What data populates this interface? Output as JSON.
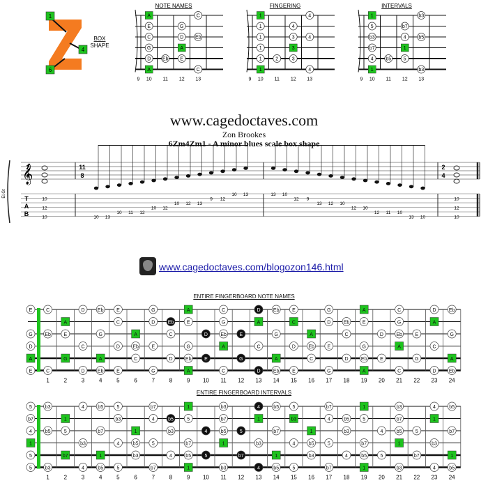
{
  "box_shape": {
    "label_line1": "BOX",
    "label_line2": "SHAPE",
    "markers": [
      "1",
      "4",
      "6"
    ],
    "colors": {
      "z": "#f47b20",
      "green": "#1ec31e",
      "orange": "#f47b20"
    }
  },
  "small_diagrams": {
    "fret_labels": [
      "9",
      "10",
      "11",
      "12",
      "13"
    ],
    "note_names": {
      "title": "NOTE NAMES",
      "rows": [
        [
          "A",
          "",
          "",
          "C"
        ],
        [
          "E",
          "",
          "G",
          ""
        ],
        [
          "C",
          "",
          "D",
          "Eb"
        ],
        [
          "G",
          "",
          "A",
          ""
        ],
        [
          "D",
          "Eb",
          "E",
          ""
        ],
        [
          "A",
          "",
          "",
          "C"
        ]
      ]
    },
    "fingering": {
      "title": "FINGERING",
      "rows": [
        [
          "1",
          "",
          "",
          "4"
        ],
        [
          "1",
          "",
          "4",
          ""
        ],
        [
          "1",
          "",
          "3",
          "4"
        ],
        [
          "1",
          "",
          "3",
          ""
        ],
        [
          "1",
          "2",
          "3",
          ""
        ],
        [
          "1",
          "",
          "",
          "4"
        ]
      ]
    },
    "intervals": {
      "title": "INTERVALS",
      "rows": [
        [
          "1",
          "",
          "",
          "b3"
        ],
        [
          "5",
          "",
          "b7",
          ""
        ],
        [
          "b3",
          "",
          "4",
          "b5"
        ],
        [
          "b7",
          "",
          "1",
          ""
        ],
        [
          "4",
          "b5",
          "5",
          ""
        ],
        [
          "1",
          "",
          "",
          "b3"
        ]
      ]
    }
  },
  "header": {
    "site": "www.cagedoctaves.com",
    "author": "Zon Brookes",
    "scale_title": "6Zm4Zm1 - A minor blues scale box shape"
  },
  "notation": {
    "time_sig_start": "2/4",
    "time_sig_middle": "11/8",
    "time_sig_end": "2/4",
    "tab_letters": [
      "T",
      "A",
      "B"
    ],
    "side_label": "El.Gt",
    "chord_start": [
      "10",
      "12",
      "10"
    ],
    "chord_end": [
      "10",
      "12",
      "10"
    ],
    "ascending": [
      {
        "s": 6,
        "f": "10"
      },
      {
        "s": 6,
        "f": "13"
      },
      {
        "s": 5,
        "f": "10"
      },
      {
        "s": 5,
        "f": "11"
      },
      {
        "s": 5,
        "f": "12"
      },
      {
        "s": 4,
        "f": "10"
      },
      {
        "s": 4,
        "f": "12"
      },
      {
        "s": 3,
        "f": "10"
      },
      {
        "s": 3,
        "f": "12"
      },
      {
        "s": 3,
        "f": "13"
      },
      {
        "s": 2,
        "f": "9"
      },
      {
        "s": 2,
        "f": "12"
      },
      {
        "s": 1,
        "f": "10"
      },
      {
        "s": 1,
        "f": "13"
      }
    ],
    "descending": [
      {
        "s": 1,
        "f": "13"
      },
      {
        "s": 1,
        "f": "10"
      },
      {
        "s": 2,
        "f": "12"
      },
      {
        "s": 2,
        "f": "9"
      },
      {
        "s": 3,
        "f": "13"
      },
      {
        "s": 3,
        "f": "12"
      },
      {
        "s": 3,
        "f": "10"
      },
      {
        "s": 4,
        "f": "12"
      },
      {
        "s": 4,
        "f": "10"
      },
      {
        "s": 5,
        "f": "12"
      },
      {
        "s": 5,
        "f": "11"
      },
      {
        "s": 5,
        "f": "10"
      },
      {
        "s": 6,
        "f": "13"
      },
      {
        "s": 6,
        "f": "10"
      }
    ]
  },
  "blog_link": "www.cagedoctaves.com/blogozon146.html",
  "fret_numbers": [
    "1",
    "2",
    "3",
    "4",
    "5",
    "6",
    "7",
    "8",
    "9",
    "10",
    "11",
    "12",
    "13",
    "14",
    "15",
    "16",
    "17",
    "18",
    "19",
    "20",
    "21",
    "22",
    "23",
    "24"
  ],
  "fb_notes": {
    "title": "ENTIRE FINGERBOARD NOTE NAMES",
    "open": [
      "E",
      "",
      "G",
      "D",
      "A",
      "E"
    ],
    "strings": [
      [
        "",
        "",
        "",
        "Eb",
        "E",
        "",
        "",
        "",
        "",
        "",
        "",
        "",
        "",
        "",
        "",
        "",
        "",
        "",
        "",
        "",
        "",
        "",
        "",
        ""
      ],
      [
        "C",
        "",
        "D",
        "Eb",
        "E",
        "",
        "G",
        "",
        "A",
        "",
        "C",
        "",
        "D",
        "Eb",
        "E",
        "",
        "G",
        "",
        "A",
        "",
        "C",
        "",
        "D",
        "Eb"
      ],
      [
        "",
        "A",
        "",
        "",
        "C",
        "",
        "D",
        "Eb",
        "E",
        "",
        "G",
        "",
        "A",
        "",
        "C",
        "",
        "D",
        "Eb",
        "E",
        "",
        "G",
        "",
        "A",
        ""
      ],
      [
        "Eb",
        "E",
        "",
        "G",
        "",
        "A",
        "",
        "C",
        "",
        "D",
        "Eb",
        "E",
        "",
        "G",
        "",
        "A",
        "",
        "C",
        "",
        "D",
        "Eb",
        "E",
        "",
        "G"
      ],
      [
        "",
        "",
        "C",
        "",
        "D",
        "Eb",
        "E",
        "",
        "G",
        "",
        "A",
        "",
        "C",
        "",
        "D",
        "Eb",
        "E",
        "",
        "G",
        "",
        "A",
        "",
        "C",
        ""
      ],
      [
        "",
        "G",
        "",
        "A",
        "",
        "C",
        "",
        "D",
        "Eb",
        "E",
        "",
        "G",
        "",
        "A",
        "",
        "C",
        "",
        "D",
        "Eb",
        "E",
        "",
        "G",
        "",
        "A"
      ]
    ],
    "rows": [
      [
        "C",
        "",
        "D",
        "Eb",
        "E",
        "",
        "G",
        "",
        "A",
        "",
        "C",
        "",
        "D",
        "Eb",
        "E",
        "",
        "G",
        "",
        "A",
        "",
        "C",
        "",
        "D",
        "Eb"
      ],
      [
        "",
        "A",
        "",
        "",
        "C",
        "",
        "D",
        "Eb",
        "E",
        "",
        "G",
        "",
        "A",
        "",
        "C",
        "",
        "D",
        "Eb",
        "E",
        "",
        "G",
        "",
        "A",
        ""
      ],
      [
        "Eb",
        "E",
        "",
        "G",
        "",
        "A",
        "",
        "C",
        "",
        "D",
        "Eb",
        "E",
        "",
        "G",
        "",
        "A",
        "",
        "C",
        "",
        "D",
        "Eb",
        "E",
        "",
        "G"
      ],
      [
        "",
        "",
        "C",
        "",
        "D",
        "Eb",
        "E",
        "",
        "G",
        "",
        "A",
        "",
        "C",
        "",
        "D",
        "Eb",
        "E",
        "",
        "G",
        "",
        "A",
        "",
        "C",
        ""
      ],
      [
        "",
        "G",
        "",
        "A",
        "",
        "C",
        "",
        "D",
        "Eb",
        "E",
        "",
        "G",
        "",
        "A",
        "",
        "C",
        "",
        "D",
        "Eb",
        "E",
        "",
        "G",
        "",
        "A"
      ],
      [
        "C",
        "",
        "D",
        "Eb",
        "E",
        "",
        "G",
        "",
        "A",
        "",
        "C",
        "",
        "D",
        "Eb",
        "E",
        "",
        "G",
        "",
        "A",
        "",
        "C",
        "",
        "D",
        "Eb"
      ]
    ],
    "styles": [
      [
        "",
        "",
        "",
        "",
        "",
        "",
        "",
        "",
        "",
        "o",
        "",
        "",
        "b",
        "",
        "",
        "",
        "",
        "",
        "",
        "",
        "",
        "g",
        "",
        ""
      ],
      [
        "",
        "g",
        "",
        "",
        "",
        "",
        "",
        "b",
        "",
        "",
        "",
        "b",
        "",
        "",
        "g",
        "",
        "",
        "",
        "",
        "",
        "",
        "",
        "",
        ""
      ],
      [
        "",
        "",
        "",
        "",
        "",
        "g",
        "",
        "",
        "",
        "b",
        "",
        "b",
        "b",
        "",
        "",
        "",
        "",
        "",
        "g",
        "",
        "",
        "",
        "",
        ""
      ],
      [
        "",
        "",
        "",
        "",
        "",
        "",
        "",
        "",
        "",
        "b",
        "",
        "o",
        "",
        "",
        "",
        "",
        "",
        "",
        "",
        "",
        "",
        "",
        "",
        "g"
      ],
      [
        "",
        "g",
        "",
        "",
        "",
        "",
        "",
        "",
        "",
        "b",
        "b",
        "b",
        "",
        "",
        "",
        "",
        "g",
        "",
        "",
        "",
        "",
        "",
        "",
        ""
      ],
      [
        "",
        "",
        "",
        "",
        "",
        "",
        "",
        "",
        "",
        "o",
        "",
        "",
        "b",
        "",
        "",
        "",
        "",
        "",
        "",
        "",
        "",
        "g",
        "",
        ""
      ]
    ]
  },
  "fb_intervals": {
    "title": "ENTIRE FINGERBOARD INTERVALS",
    "open": [
      "5",
      "b7",
      "4",
      "1",
      "5",
      "5"
    ],
    "rows": [
      [
        "b3",
        "",
        "4",
        "b5",
        "5",
        "",
        "b7",
        "",
        "1",
        "",
        "b3",
        "",
        "4",
        "b5",
        "5",
        "",
        "b7",
        "",
        "1",
        "",
        "b3",
        "",
        "4",
        "b5"
      ],
      [
        "",
        "1",
        "",
        "",
        "b3",
        "",
        "4",
        "b5",
        "5",
        "",
        "b7",
        "",
        "1",
        "",
        "b3",
        "",
        "4",
        "b5",
        "5",
        "",
        "b7",
        "",
        "1",
        ""
      ],
      [
        "b5",
        "5",
        "",
        "b7",
        "",
        "1",
        "",
        "b3",
        "",
        "4",
        "b5",
        "5",
        "",
        "b7",
        "",
        "1",
        "",
        "b3",
        "",
        "4",
        "b5",
        "5",
        "",
        "b7"
      ],
      [
        "",
        "",
        "b3",
        "",
        "4",
        "b5",
        "5",
        "",
        "b7",
        "",
        "1",
        "",
        "b3",
        "",
        "4",
        "b5",
        "5",
        "",
        "b7",
        "",
        "1",
        "",
        "b3",
        ""
      ],
      [
        "",
        "b7",
        "",
        "1",
        "",
        "b3",
        "",
        "4",
        "b5",
        "5",
        "",
        "b7",
        "",
        "1",
        "",
        "b3",
        "",
        "4",
        "b5",
        "5",
        "",
        "b7",
        "",
        "1"
      ],
      [
        "b3",
        "",
        "4",
        "b5",
        "5",
        "",
        "b7",
        "",
        "1",
        "",
        "b3",
        "",
        "4",
        "b5",
        "5",
        "",
        "b7",
        "",
        "1",
        "",
        "b3",
        "",
        "4",
        "b5"
      ]
    ]
  }
}
